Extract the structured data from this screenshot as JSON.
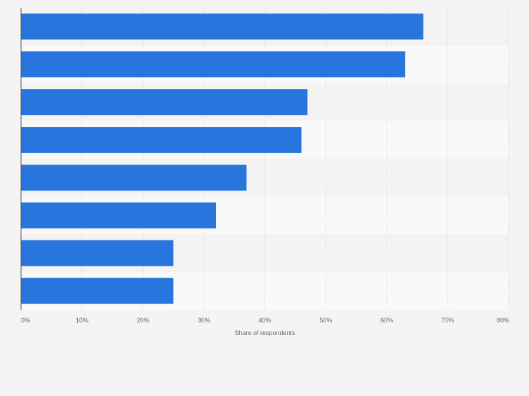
{
  "chart_data": {
    "type": "bar",
    "orientation": "horizontal",
    "categories": [
      "",
      "",
      "",
      "",
      "",
      "",
      "",
      ""
    ],
    "values": [
      66,
      63,
      47,
      46,
      37,
      32,
      25,
      25
    ],
    "xlim": [
      0,
      80
    ],
    "xticks": [
      "0%",
      "10%",
      "20%",
      "30%",
      "40%",
      "50%",
      "60%",
      "70%",
      "80%"
    ],
    "xlabel": "Share of respondents",
    "ylabel": "",
    "grid": true,
    "colors": {
      "bar": "#2876dd",
      "background": "#f4f4f4",
      "band_light": "#f9f9f9",
      "band_dark": "#f3f3f3",
      "grid": "#d9d9d9",
      "axis": "#555555",
      "tick_text": "#666666"
    }
  }
}
